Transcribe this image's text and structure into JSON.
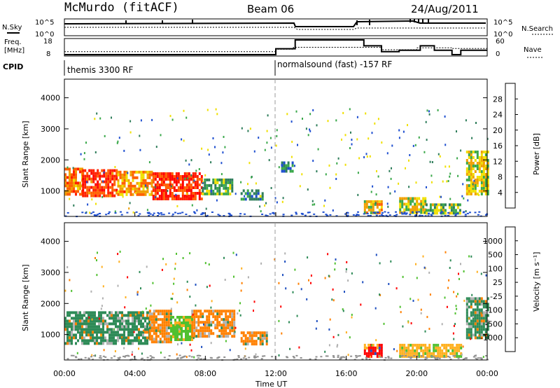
{
  "header": {
    "station": "McMurdo (fitACF)",
    "beam": "Beam 06",
    "date": "24/Aug/2011"
  },
  "colors": {
    "power": [
      "#0000ff",
      "#1f4fd0",
      "#2e7d5a",
      "#3aa84a",
      "#f0e000",
      "#f0a000",
      "#ff6000",
      "#ff2000",
      "#ff0000"
    ],
    "velocity": [
      "#ff0000",
      "#ff4000",
      "#ff8000",
      "#ffb020",
      "#b0b0b0",
      "#50c030",
      "#2e8b57",
      "#2050c0",
      "#1a3fd0"
    ],
    "ground": "#909090"
  },
  "noise_panel": {
    "left_label": "N.Sky",
    "right_label": "N.Search",
    "left_ticks": [
      "10^5",
      "10^0"
    ],
    "right_ticks": [
      "10^5",
      "10^0"
    ]
  },
  "freq_panel": {
    "left_label_1": "Freq.",
    "left_label_2": "[MHz]",
    "right_label": "Nave",
    "left_ticks": [
      "18",
      "8"
    ],
    "right_ticks": [
      "60",
      "0"
    ],
    "freq_steps": [
      [
        0,
        8
      ],
      [
        12,
        12
      ],
      [
        13.1,
        18
      ],
      [
        17,
        14
      ],
      [
        18,
        10
      ],
      [
        19,
        11
      ],
      [
        20.2,
        14
      ],
      [
        21,
        11
      ],
      [
        22,
        8
      ],
      [
        22.5,
        11
      ],
      [
        23,
        11
      ],
      [
        24,
        11
      ]
    ],
    "nave_steps": [
      [
        0,
        12
      ],
      [
        11,
        12
      ],
      [
        12,
        22
      ],
      [
        13,
        30
      ],
      [
        14,
        30
      ],
      [
        17,
        30
      ],
      [
        18,
        20
      ],
      [
        20,
        28
      ],
      [
        22,
        25
      ],
      [
        24,
        25
      ]
    ]
  },
  "cpid_panel": {
    "label": "CPID",
    "modes": [
      {
        "start": 0,
        "text": "themis 3300 RF"
      },
      {
        "start": 12,
        "text": "normalsound (fast) -157 RF"
      }
    ]
  },
  "time_axis": {
    "label": "Time UT",
    "ticks": [
      "00:00",
      "04:00",
      "08:00",
      "12:00",
      "16:00",
      "20:00",
      "00:00"
    ]
  },
  "chart_data": [
    {
      "type": "heatmap",
      "name": "power",
      "ylabel": "Slant Range [km]",
      "yticks": [
        "1000",
        "2000",
        "3000",
        "4000"
      ],
      "ylim": [
        180,
        4600
      ],
      "xlim": [
        0,
        24
      ],
      "colorbar_label": "Power [dB]",
      "colorbar_ticks": [
        "4",
        "8",
        "12",
        "16",
        "20",
        "24",
        "28"
      ],
      "colorbar_range": [
        0,
        32
      ],
      "regions": [
        {
          "t0": 0.0,
          "t1": 1.0,
          "r0": 850,
          "r1": 1750,
          "v": 22
        },
        {
          "t0": 1.0,
          "t1": 3.0,
          "r0": 800,
          "r1": 1700,
          "v": 26
        },
        {
          "t0": 3.0,
          "t1": 5.0,
          "r0": 900,
          "r1": 1650,
          "v": 20
        },
        {
          "t0": 5.0,
          "t1": 7.8,
          "r0": 750,
          "r1": 1600,
          "v": 27
        },
        {
          "t0": 7.8,
          "t1": 9.5,
          "r0": 900,
          "r1": 1400,
          "v": 12
        },
        {
          "t0": 10.0,
          "t1": 11.2,
          "r0": 700,
          "r1": 1050,
          "v": 10
        },
        {
          "t0": 12.3,
          "t1": 13.0,
          "r0": 1600,
          "r1": 1950,
          "v": 8
        },
        {
          "t0": 17.0,
          "t1": 18.0,
          "r0": 300,
          "r1": 700,
          "v": 18
        },
        {
          "t0": 19.0,
          "t1": 20.5,
          "r0": 300,
          "r1": 800,
          "v": 16
        },
        {
          "t0": 20.5,
          "t1": 22.5,
          "r0": 300,
          "r1": 600,
          "v": 14
        },
        {
          "t0": 22.8,
          "t1": 24.0,
          "r0": 900,
          "r1": 2300,
          "v": 16
        }
      ]
    },
    {
      "type": "heatmap",
      "name": "velocity",
      "ylabel": "Slant Range [km]",
      "yticks": [
        "1000",
        "2000",
        "3000",
        "4000"
      ],
      "ylim": [
        180,
        4600
      ],
      "xlim": [
        0,
        24
      ],
      "colorbar_label": "Velocity [m s⁻¹]",
      "colorbar_ticks": [
        "1000",
        "500",
        "100",
        "25",
        "-25",
        "-100",
        "-500",
        "-1000"
      ],
      "regions": [
        {
          "t0": 0.0,
          "t1": 4.8,
          "r0": 700,
          "r1": 1750,
          "v": 2
        },
        {
          "t0": 4.8,
          "t1": 6.0,
          "r0": 800,
          "r1": 1800,
          "v": -2
        },
        {
          "t0": 6.0,
          "t1": 7.2,
          "r0": 800,
          "r1": 1600,
          "v": 1
        },
        {
          "t0": 7.2,
          "t1": 9.6,
          "r0": 900,
          "r1": 1800,
          "v": -2
        },
        {
          "t0": 10.0,
          "t1": 11.5,
          "r0": 700,
          "r1": 1100,
          "v": -2
        },
        {
          "t0": 17.0,
          "t1": 18.0,
          "r0": 300,
          "r1": 700,
          "v": -3
        },
        {
          "t0": 19.0,
          "t1": 22.5,
          "r0": 300,
          "r1": 700,
          "v": -1
        },
        {
          "t0": 22.8,
          "t1": 24.0,
          "r0": 900,
          "r1": 2200,
          "v": 2
        }
      ]
    }
  ]
}
